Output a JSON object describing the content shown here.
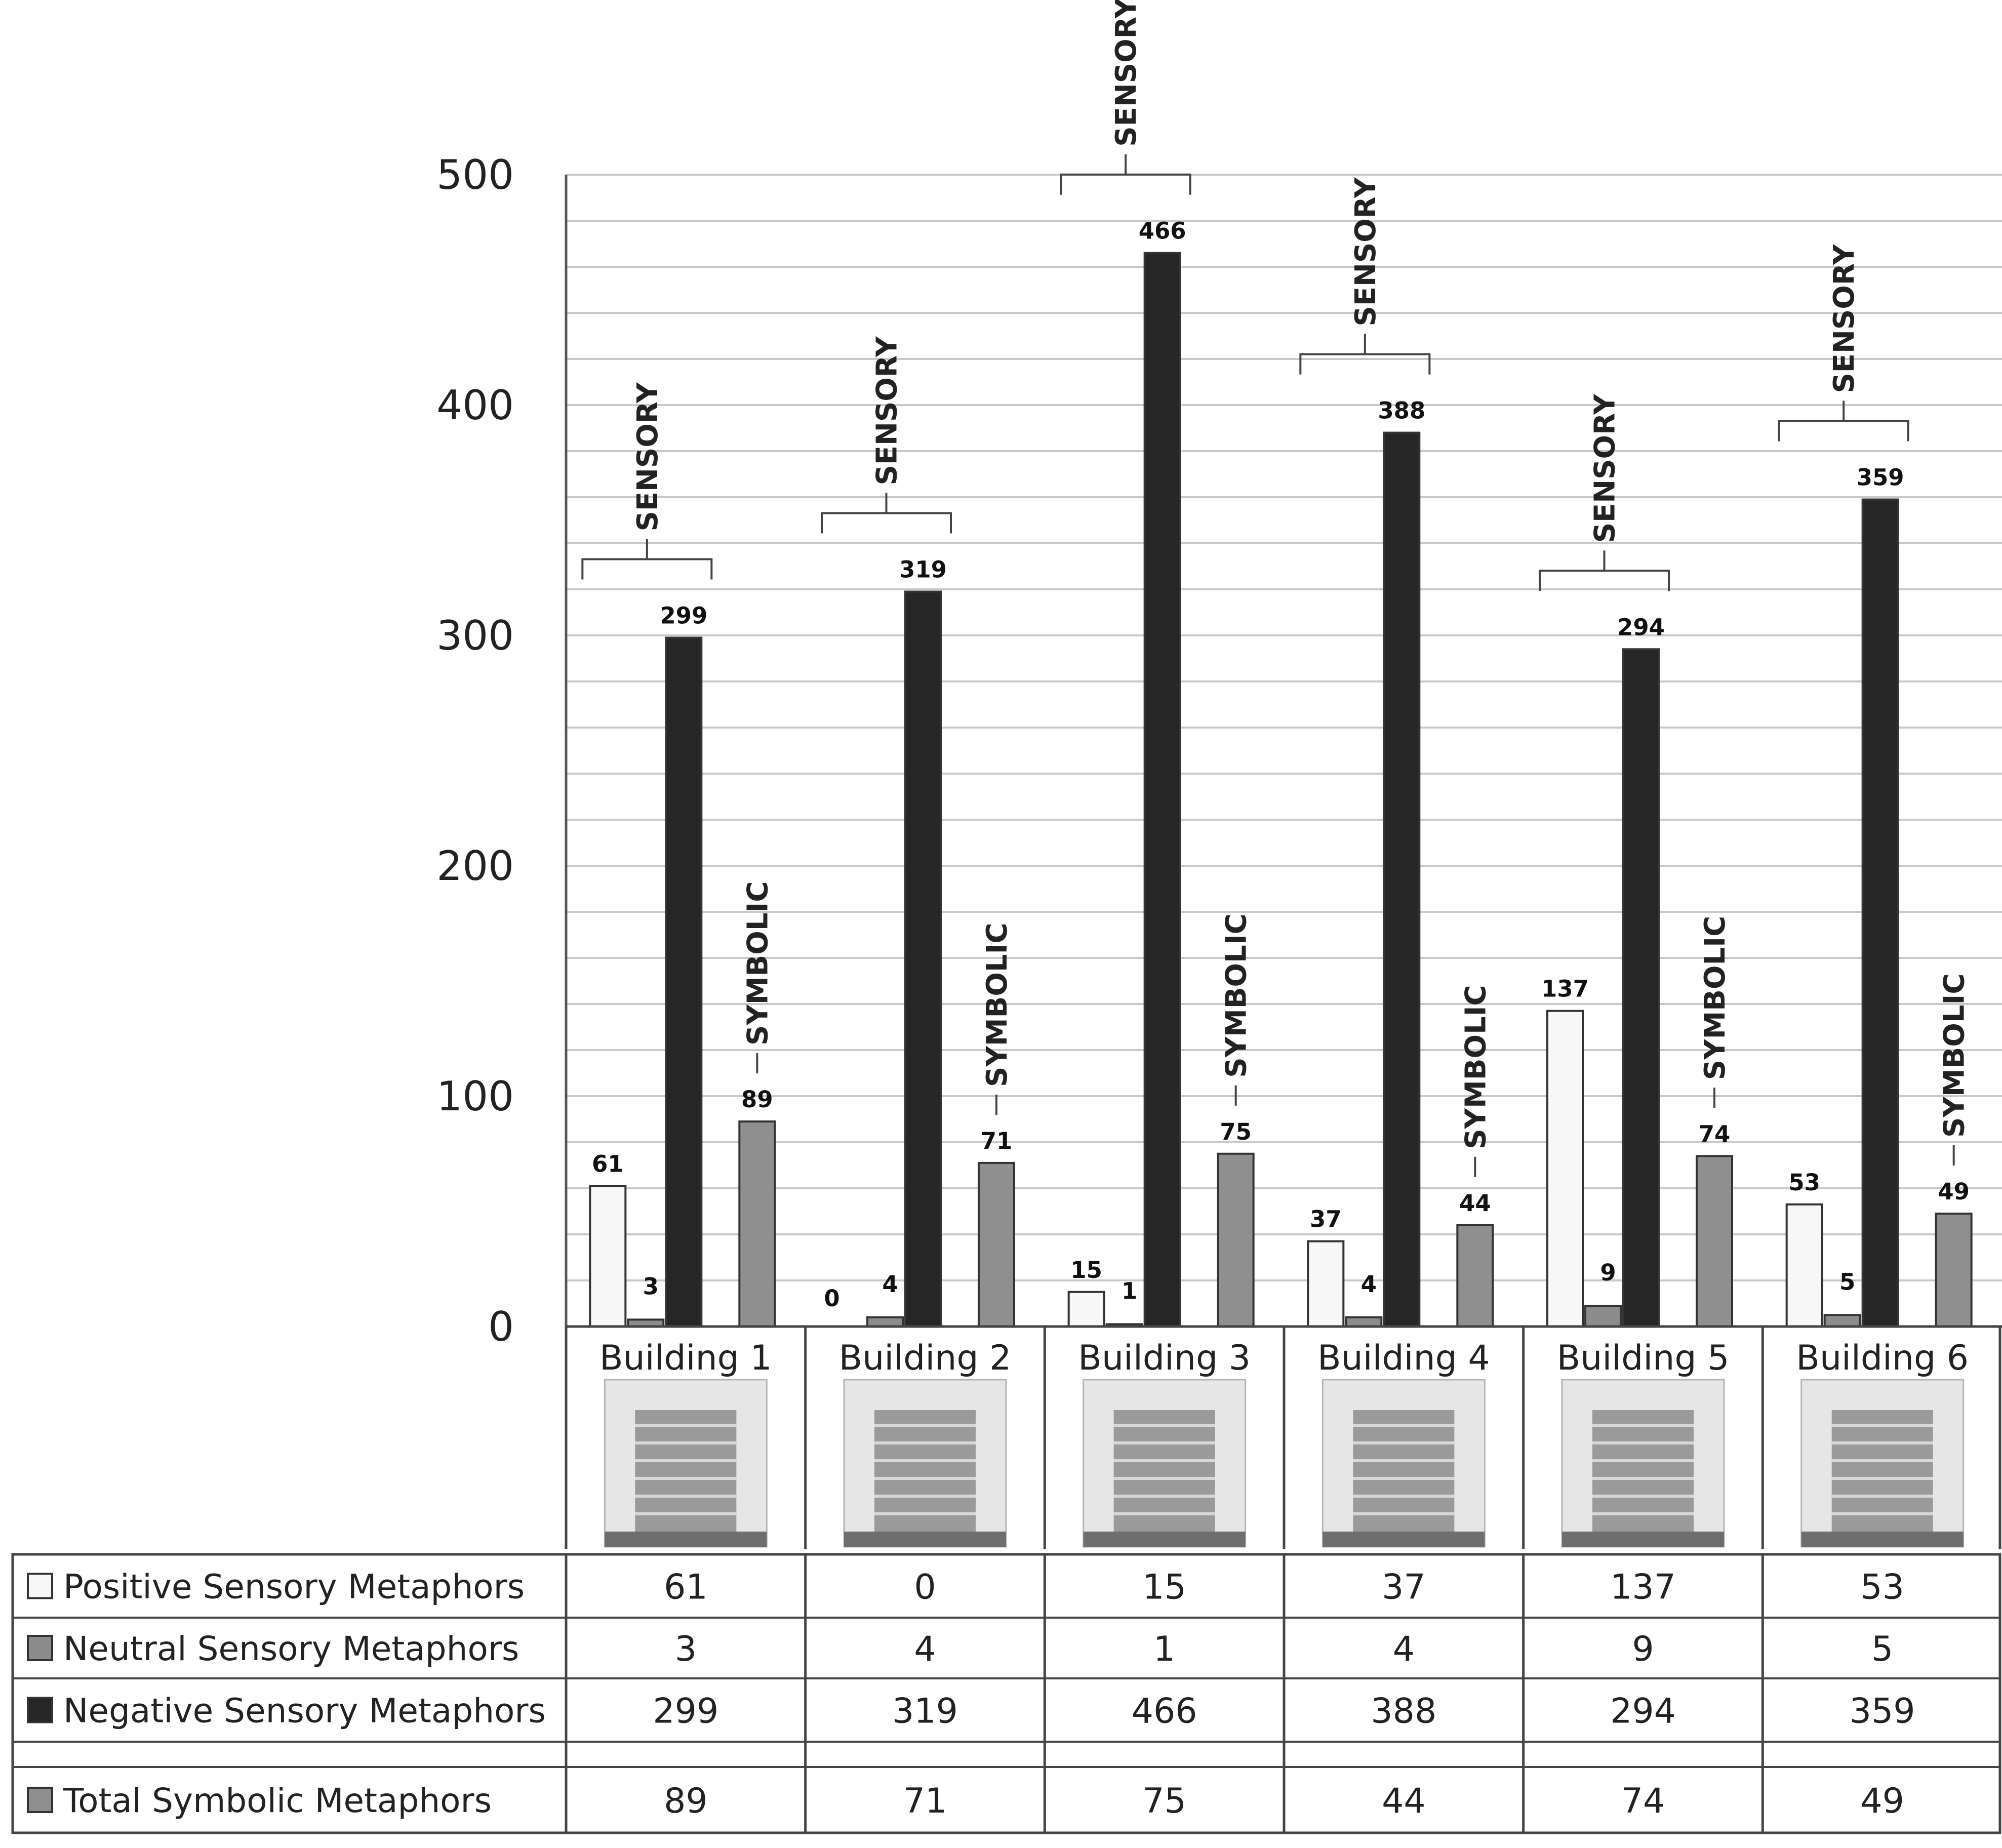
{
  "chart_data": {
    "type": "bar",
    "categories": [
      "Building 1",
      "Building 2",
      "Building 3",
      "Building 4",
      "Building 5",
      "Building 6"
    ],
    "series": [
      {
        "name": "Positive Sensory Metaphors",
        "values": [
          61,
          0,
          15,
          37,
          137,
          53
        ],
        "color": "#f7f7f7"
      },
      {
        "name": "Neutral Sensory Metaphors",
        "values": [
          3,
          4,
          1,
          4,
          9,
          5
        ],
        "color": "#8c8c8c"
      },
      {
        "name": "Negative Sensory Metaphors",
        "values": [
          299,
          319,
          466,
          388,
          294,
          359
        ],
        "color": "#262626"
      },
      {
        "name": "Total Symbolic Metaphors",
        "values": [
          89,
          71,
          75,
          44,
          74,
          49
        ],
        "color": "#8f8f8f"
      }
    ],
    "ylim": [
      0,
      500
    ],
    "yticks": [
      0,
      100,
      200,
      300,
      400,
      500
    ],
    "grid": true,
    "legend": "data table below chart",
    "annotations": {
      "sensory": "SENSORY",
      "symbolic": "SYMBOLIC"
    },
    "category_images": [
      "building-photo",
      "building-photo",
      "building-photo",
      "building-photo",
      "building-photo",
      "building-photo"
    ]
  }
}
